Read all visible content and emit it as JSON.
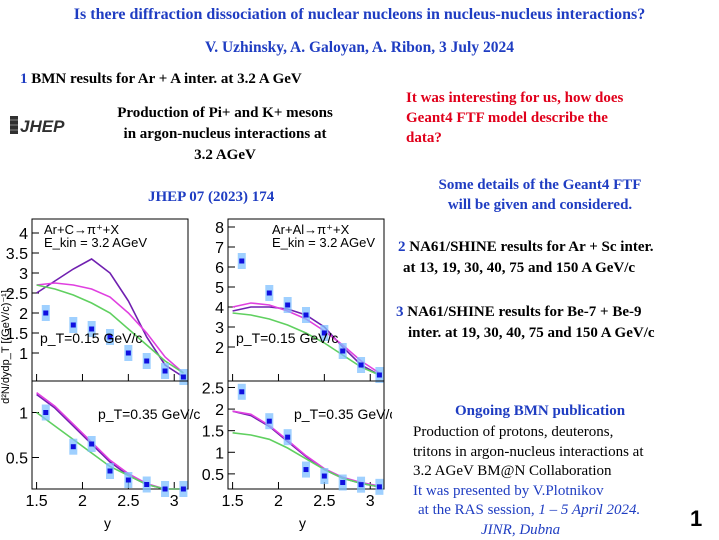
{
  "header": {
    "title": "Is there diffraction dissociation of nuclear nucleons in nucleus-nucleus interactions?",
    "authors": "V. Uzhinsky, A. Galoyan, A. Ribon, 3 July 2024"
  },
  "section1": {
    "number": "1",
    "heading": "BMN results for Ar + A inter. at 3.2 A GeV",
    "production_lines": [
      "Production of Pi+ and K+ mesons",
      "in argon-nucleus interactions at",
      "3.2 AGeV"
    ],
    "journal_ref": "JHEP 07 (2023) 174",
    "logo_text": "JHEP"
  },
  "right": {
    "question_lines": [
      "It was interesting for us, how does",
      "Geant4 FTF model describe the",
      "data?"
    ],
    "details_lines": [
      "Some details of the Geant4 FTF",
      "will be given and considered."
    ],
    "item2": {
      "number": "2",
      "lines": [
        "NA61/SHINE results for Ar + Sc inter.",
        "at 13, 19, 30, 40, 75 and 150 A GeV/c"
      ]
    },
    "item3": {
      "number": "3",
      "lines": [
        "NA61/SHINE results for Be-7 + Be-9",
        "inter. at 19, 30, 40, 75 and 150 A GeV/c"
      ]
    },
    "ongoing": {
      "heading": "Ongoing BMN publication",
      "lines": [
        "Production of protons, deuterons,",
        "tritons in argon-nucleus interactions at",
        "3.2 AGeV BM@N Collaboration"
      ],
      "presented": "It was presented by V.Plotnikov",
      "session_prefix": "at the RAS session, ",
      "session_date": "1 – 5 April 2024.",
      "place": "JINR, Dubna"
    }
  },
  "page_number": "1",
  "colors": {
    "title": "#1f3dc2",
    "question": "#e0001b",
    "data": "#1010e0",
    "magenta": "#e040e0",
    "green": "#60d060",
    "purple": "#7020b0"
  },
  "chart_data": [
    {
      "type": "scatter",
      "reaction": "Ar+C→π⁺+X",
      "energy": "E_kin = 3.2 AGeV",
      "pt_label": "p_T=0.15 GeV/c",
      "ylabel": "d²N/dydp_T [(GeV/c)⁻¹]",
      "xlim": [
        1.45,
        3.15
      ],
      "ylim": [
        0.3,
        4.35
      ],
      "yticks": [
        "1",
        "1.5",
        "2",
        "2.5",
        "3",
        "3.5",
        "4"
      ],
      "x": [
        1.6,
        1.9,
        2.1,
        2.3,
        2.5,
        2.7,
        2.9,
        3.1
      ],
      "values": [
        2.0,
        1.7,
        1.6,
        1.4,
        1.0,
        0.8,
        0.55,
        0.4
      ],
      "series": [
        {
          "color": "purple",
          "x": [
            1.5,
            1.7,
            1.9,
            2.1,
            2.3,
            2.5,
            2.7,
            2.9,
            3.1
          ],
          "y": [
            2.5,
            2.8,
            3.1,
            3.35,
            3.0,
            2.3,
            1.4,
            0.7,
            0.4
          ]
        },
        {
          "color": "magenta",
          "x": [
            1.5,
            1.7,
            1.9,
            2.1,
            2.3,
            2.5,
            2.7,
            2.9,
            3.1
          ],
          "y": [
            2.7,
            2.75,
            2.7,
            2.6,
            2.4,
            2.0,
            1.5,
            0.9,
            0.5
          ]
        },
        {
          "color": "green",
          "x": [
            1.5,
            1.7,
            1.9,
            2.1,
            2.3,
            2.5,
            2.7,
            2.9,
            3.1
          ],
          "y": [
            2.7,
            2.6,
            2.45,
            2.25,
            2.0,
            1.6,
            1.2,
            0.8,
            0.5
          ]
        }
      ]
    },
    {
      "type": "scatter",
      "reaction": "Ar+Al→π⁺+X",
      "energy": "E_kin = 3.2 AGeV",
      "pt_label": "p_T=0.15 GeV/c",
      "xlim": [
        1.45,
        3.15
      ],
      "ylim": [
        0.3,
        8.4
      ],
      "yticks": [
        "2",
        "3",
        "4",
        "5",
        "6",
        "7",
        "8"
      ],
      "x": [
        1.6,
        1.9,
        2.1,
        2.3,
        2.5,
        2.7,
        2.9,
        3.1
      ],
      "values": [
        6.3,
        4.7,
        4.1,
        3.6,
        2.7,
        1.8,
        1.1,
        0.6
      ],
      "series": [
        {
          "color": "purple",
          "x": [
            1.5,
            1.7,
            1.9,
            2.1,
            2.3,
            2.5,
            2.7,
            2.9,
            3.1
          ],
          "y": [
            3.8,
            4.0,
            4.0,
            3.9,
            3.6,
            3.0,
            2.0,
            1.1,
            0.6
          ]
        },
        {
          "color": "magenta",
          "x": [
            1.5,
            1.7,
            1.9,
            2.1,
            2.3,
            2.5,
            2.7,
            2.9,
            3.1
          ],
          "y": [
            4.0,
            4.2,
            4.1,
            3.8,
            3.4,
            2.8,
            2.1,
            1.3,
            0.7
          ]
        },
        {
          "color": "green",
          "x": [
            1.5,
            1.7,
            1.9,
            2.1,
            2.3,
            2.5,
            2.7,
            2.9,
            3.1
          ],
          "y": [
            3.7,
            3.6,
            3.4,
            3.1,
            2.7,
            2.2,
            1.6,
            1.0,
            0.6
          ]
        }
      ]
    },
    {
      "type": "scatter",
      "pt_label": "p_T=0.35 GeV/c",
      "xlabel": "y",
      "xlim": [
        1.45,
        3.15
      ],
      "ylim": [
        0.15,
        1.35
      ],
      "xticks": [
        "1.5",
        "2",
        "2.5",
        "3"
      ],
      "yticks": [
        "0.5",
        "1"
      ],
      "x": [
        1.6,
        1.9,
        2.1,
        2.3,
        2.5,
        2.7,
        2.9,
        3.1
      ],
      "values": [
        1.0,
        0.62,
        0.65,
        0.35,
        0.25,
        0.2,
        0.15,
        0.15
      ],
      "series": [
        {
          "color": "purple",
          "x": [
            1.5,
            1.7,
            1.9,
            2.1,
            2.3,
            2.5,
            2.7,
            2.9,
            3.1
          ],
          "y": [
            1.2,
            1.05,
            0.85,
            0.65,
            0.45,
            0.3,
            0.2,
            0.15,
            0.15
          ]
        },
        {
          "color": "magenta",
          "x": [
            1.5,
            1.7,
            1.9,
            2.1,
            2.3,
            2.5,
            2.7,
            2.9,
            3.1
          ],
          "y": [
            1.22,
            1.07,
            0.87,
            0.67,
            0.47,
            0.32,
            0.21,
            0.15,
            0.15
          ]
        },
        {
          "color": "green",
          "x": [
            1.5,
            1.7,
            1.9,
            2.1,
            2.3,
            2.5,
            2.7,
            2.9,
            3.1
          ],
          "y": [
            1.0,
            0.85,
            0.7,
            0.55,
            0.4,
            0.3,
            0.2,
            0.15,
            0.15
          ]
        }
      ]
    },
    {
      "type": "scatter",
      "pt_label": "p_T=0.35 GeV/c",
      "xlabel": "y",
      "xlim": [
        1.45,
        3.15
      ],
      "ylim": [
        0.15,
        2.65
      ],
      "xticks": [
        "1.5",
        "2",
        "2.5",
        "3"
      ],
      "yticks": [
        "0.5",
        "1",
        "1.5",
        "2",
        "2.5"
      ],
      "x": [
        1.6,
        1.9,
        2.1,
        2.3,
        2.5,
        2.7,
        2.9,
        3.1
      ],
      "values": [
        2.4,
        1.72,
        1.35,
        0.6,
        0.45,
        0.3,
        0.25,
        0.2
      ],
      "series": [
        {
          "color": "purple",
          "x": [
            1.5,
            1.7,
            1.9,
            2.1,
            2.3,
            2.5,
            2.7,
            2.9,
            3.1
          ],
          "y": [
            1.95,
            1.85,
            1.6,
            1.25,
            0.9,
            0.6,
            0.4,
            0.28,
            0.2
          ]
        },
        {
          "color": "magenta",
          "x": [
            1.5,
            1.7,
            1.9,
            2.1,
            2.3,
            2.5,
            2.7,
            2.9,
            3.1
          ],
          "y": [
            1.95,
            1.88,
            1.62,
            1.28,
            0.92,
            0.62,
            0.42,
            0.3,
            0.22
          ]
        },
        {
          "color": "green",
          "x": [
            1.5,
            1.7,
            1.9,
            2.1,
            2.3,
            2.5,
            2.7,
            2.9,
            3.1
          ],
          "y": [
            1.45,
            1.4,
            1.3,
            1.1,
            0.85,
            0.6,
            0.4,
            0.28,
            0.2
          ]
        }
      ]
    }
  ]
}
